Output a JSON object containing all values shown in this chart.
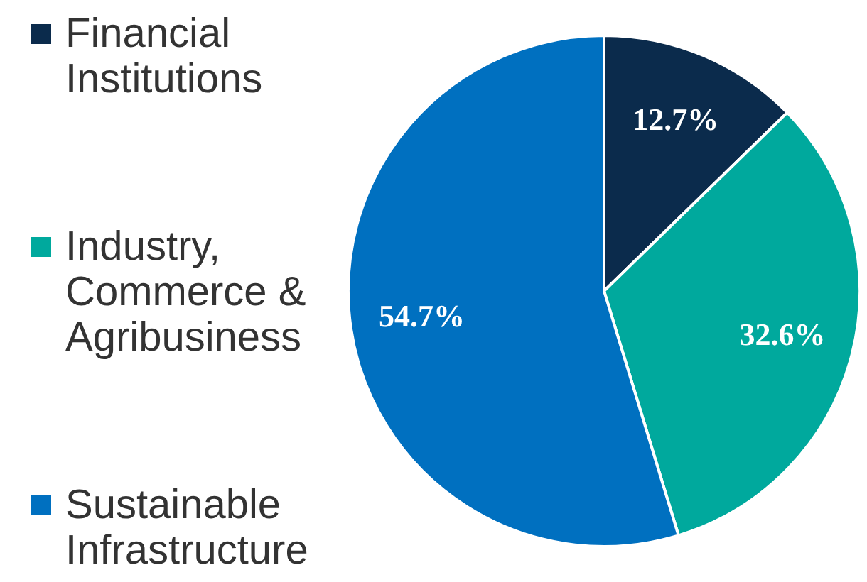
{
  "chart_data": {
    "type": "pie",
    "categories": [
      "Financial Institutions",
      "Industry, Commerce & Agribusiness",
      "Sustainable Infrastructure"
    ],
    "values": [
      12.7,
      32.6,
      54.7
    ],
    "colors": [
      "#0b2b4c",
      "#00a99d",
      "#0070c0"
    ],
    "value_labels": [
      "12.7%",
      "32.6%",
      "54.7%"
    ],
    "legend": "left"
  }
}
